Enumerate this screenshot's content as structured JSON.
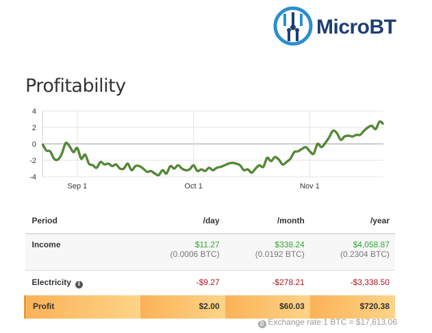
{
  "brand": {
    "name": "MicroBT"
  },
  "page": {
    "title": "Profitability"
  },
  "chart_data": {
    "type": "line",
    "title": "",
    "xlabel": "",
    "ylabel": "",
    "ylim": [
      -4,
      4
    ],
    "yticks": [
      4,
      2,
      0,
      -2,
      -4
    ],
    "xtick_labels": [
      "Sep 1",
      "Oct 1",
      "Nov 1"
    ],
    "xtick_days": [
      9,
      39,
      69
    ],
    "x_days_range": [
      0,
      88
    ],
    "line_color": "#2ea82e",
    "below_zero_color": "#8b1d1d",
    "values": [
      0.0,
      -0.8,
      -0.9,
      -1.8,
      -1.9,
      -1.2,
      0.1,
      -0.3,
      -1.0,
      -0.5,
      -1.8,
      -1.3,
      -2.4,
      -2.6,
      -2.9,
      -2.2,
      -2.5,
      -2.4,
      -2.7,
      -2.5,
      -3.0,
      -3.0,
      -2.4,
      -3.2,
      -2.7,
      -2.7,
      -3.0,
      -3.4,
      -3.3,
      -3.6,
      -3.8,
      -3.2,
      -3.6,
      -2.7,
      -3.0,
      -2.6,
      -3.0,
      -3.2,
      -3.1,
      -2.6,
      -3.3,
      -3.1,
      -3.3,
      -2.9,
      -3.2,
      -2.9,
      -2.8,
      -2.6,
      -2.4,
      -2.3,
      -2.4,
      -2.6,
      -3.2,
      -3.1,
      -3.5,
      -3.0,
      -2.6,
      -2.8,
      -1.7,
      -2.1,
      -1.6,
      -1.9,
      -2.5,
      -2.2,
      -1.8,
      -1.0,
      -0.9,
      -0.6,
      -0.4,
      -0.9,
      -1.2,
      0.0,
      -0.4,
      0.1,
      0.8,
      1.6,
      1.3,
      0.5,
      0.9,
      1.0,
      0.9,
      1.1,
      1.1,
      1.6,
      2.0,
      2.2,
      1.8,
      2.7,
      2.4
    ]
  },
  "table": {
    "headers": {
      "period": "Period",
      "day": "/day",
      "month": "/month",
      "year": "/year"
    },
    "income": {
      "label": "Income",
      "day": "$11.27",
      "day_btc": "(0.0006 BTC)",
      "month": "$338.24",
      "month_btc": "(0.0192 BTC)",
      "year": "$4,058.87",
      "year_btc": "(0.2304 BTC)"
    },
    "electricity": {
      "label": "Electricity",
      "day": "-$9.27",
      "month": "-$278.21",
      "year": "-$3,338.50"
    },
    "profit": {
      "label": "Profit",
      "day": "$2.00",
      "month": "$60.03",
      "year": "$720.38"
    }
  },
  "footer": {
    "exchange_rate": "Exchange rate 1 BTC = $17,613.06"
  }
}
